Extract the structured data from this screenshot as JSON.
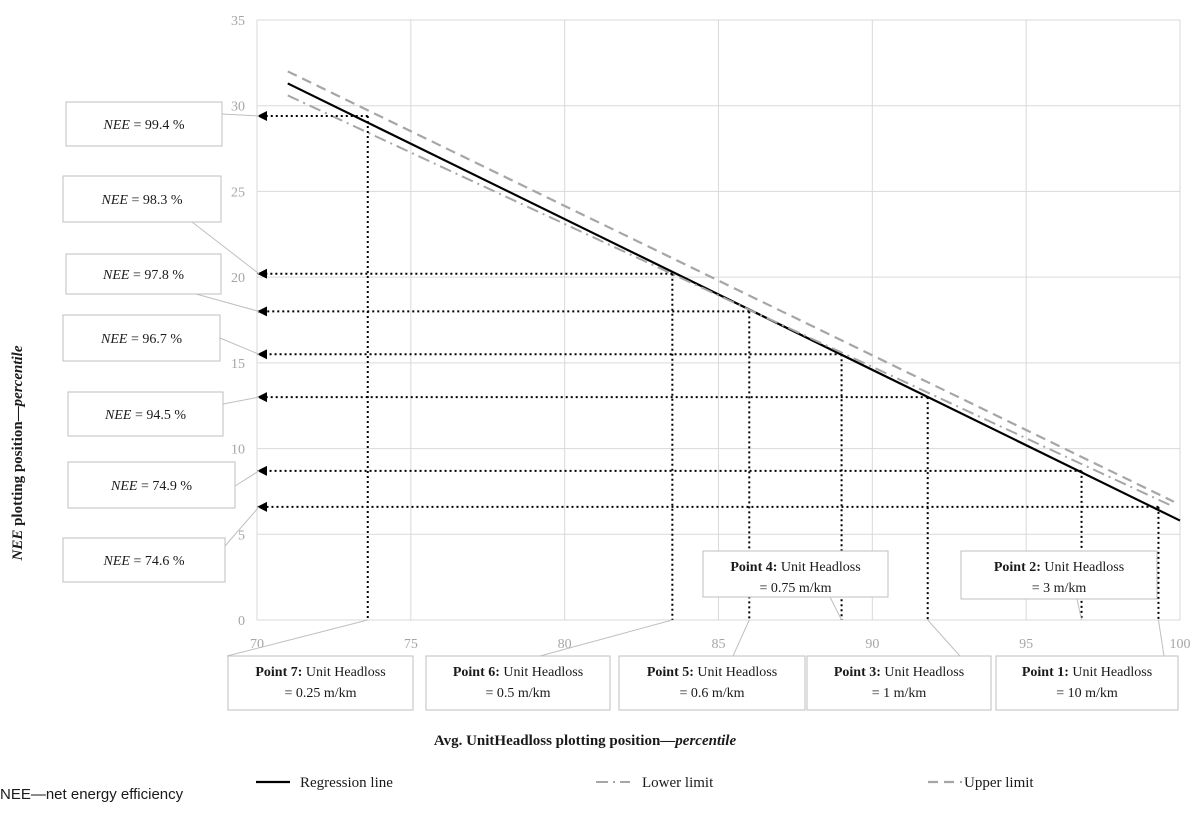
{
  "chart_data": {
    "type": "line",
    "xlabel": {
      "prefix": "Avg. UnitHeadloss plotting position—",
      "suffix": "percentile"
    },
    "ylabel": {
      "prefix": "NEE",
      "middle": " plotting position—",
      "suffix": "percentile"
    },
    "xlim": [
      70,
      100
    ],
    "ylim": [
      0,
      35
    ],
    "xticks": [
      70,
      75,
      80,
      85,
      90,
      95,
      100
    ],
    "yticks": [
      0,
      5,
      10,
      15,
      20,
      25,
      30,
      35
    ],
    "grid": true,
    "legend_position": "bottom",
    "series": [
      {
        "name": "Regression line",
        "style": "solid",
        "color": "#000000",
        "x": [
          71.0,
          100.0
        ],
        "y": [
          31.3,
          5.8
        ]
      },
      {
        "name": "Lower limit",
        "style": "dash-dot",
        "color": "#a6a6a6",
        "x": [
          71.0,
          99.8
        ],
        "y": [
          30.6,
          6.6
        ]
      },
      {
        "name": "Upper limit",
        "style": "dashed",
        "color": "#a6a6a6",
        "x": [
          71.0,
          99.8
        ],
        "y": [
          32.0,
          6.9
        ]
      }
    ],
    "points": [
      {
        "id": 1,
        "x": 99.3,
        "y": 6.6,
        "label_bold": "Point 1:",
        "label_rest": " Unit Headloss",
        "label_line2": "= 10 m/km"
      },
      {
        "id": 2,
        "x": 96.8,
        "y": 8.7,
        "label_bold": "Point 2:",
        "label_rest": " Unit Headloss",
        "label_line2": "= 3 m/km"
      },
      {
        "id": 3,
        "x": 91.8,
        "y": 13.0,
        "label_bold": "Point 3:",
        "label_rest": " Unit Headloss",
        "label_line2": "= 1 m/km"
      },
      {
        "id": 4,
        "x": 89.0,
        "y": 15.5,
        "label_bold": "Point 4:",
        "label_rest": " Unit Headloss",
        "label_line2": "= 0.75 m/km"
      },
      {
        "id": 5,
        "x": 86.0,
        "y": 18.0,
        "label_bold": "Point 5:",
        "label_rest": " Unit Headloss",
        "label_line2": "= 0.6 m/km"
      },
      {
        "id": 6,
        "x": 83.5,
        "y": 20.2,
        "label_bold": "Point 6:",
        "label_rest": " Unit Headloss",
        "label_line2": "= 0.5 m/km"
      },
      {
        "id": 7,
        "x": 73.6,
        "y": 29.4,
        "label_bold": "Point 7:",
        "label_rest": " Unit Headloss",
        "label_line2": "= 0.25 m/km"
      }
    ],
    "nee_labels": [
      {
        "point": 7,
        "var": "NEE",
        "text": " = 99.4 %"
      },
      {
        "point": 6,
        "var": "NEE",
        "text": " = 98.3 %"
      },
      {
        "point": 5,
        "var": "NEE",
        "text": " = 97.8 %"
      },
      {
        "point": 4,
        "var": "NEE",
        "text": " = 96.7 %"
      },
      {
        "point": 3,
        "var": "NEE",
        "text": " = 94.5 %"
      },
      {
        "point": 2,
        "var": "NEE",
        "text": " = 74.9 %"
      },
      {
        "point": 1,
        "var": "NEE",
        "text": " = 74.6 %"
      }
    ]
  },
  "footnote": "NEE—net energy efficiency"
}
